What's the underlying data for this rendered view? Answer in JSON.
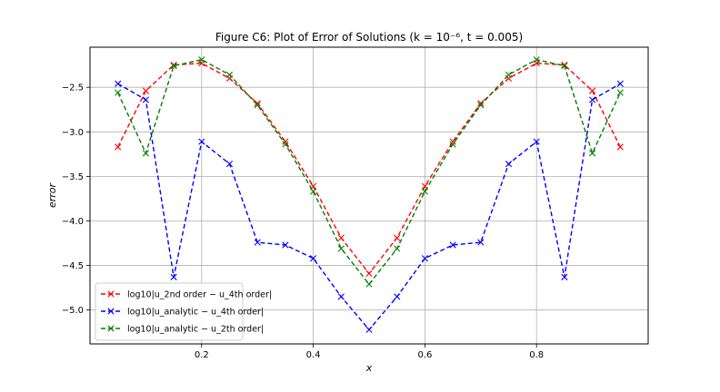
{
  "chart_data": {
    "type": "line",
    "title": "Figure C6: Plot of Error of Solutions (k = 10⁻⁶, t = 0.005)",
    "xlabel": "x",
    "ylabel": "error",
    "xlim": [
      0.0,
      1.0
    ],
    "ylim": [
      -5.38,
      -2.05
    ],
    "xticks": [
      0.2,
      0.4,
      0.6,
      0.8
    ],
    "xtick_labels": [
      "0.2",
      "0.4",
      "0.6",
      "0.8"
    ],
    "yticks": [
      -2.5,
      -3.0,
      -3.5,
      -4.0,
      -4.5,
      -5.0
    ],
    "ytick_labels": [
      "−2.5",
      "−3.0",
      "−3.5",
      "−4.0",
      "−4.5",
      "−5.0"
    ],
    "grid": true,
    "legend_position": "lower-left",
    "x": [
      0.05,
      0.1,
      0.15,
      0.2,
      0.25,
      0.3,
      0.35,
      0.4,
      0.45,
      0.5,
      0.55,
      0.6,
      0.65,
      0.7,
      0.75,
      0.8,
      0.85,
      0.9,
      0.95
    ],
    "series": [
      {
        "name": "log10|u_2nd order − u_4th order|",
        "color": "#ff0000",
        "values": [
          -3.17,
          -2.54,
          -2.25,
          -2.23,
          -2.4,
          -2.68,
          -3.11,
          -3.61,
          -4.19,
          -4.59,
          -4.19,
          -3.61,
          -3.11,
          -2.68,
          -2.4,
          -2.23,
          -2.25,
          -2.54,
          -3.17
        ]
      },
      {
        "name": "log10|u_analytic − u_4th order|",
        "color": "#0000ff",
        "values": [
          -2.46,
          -2.64,
          -4.63,
          -3.11,
          -3.36,
          -4.24,
          -4.27,
          -4.42,
          -4.85,
          -5.22,
          -4.85,
          -4.42,
          -4.27,
          -4.24,
          -3.36,
          -3.11,
          -4.63,
          -2.64,
          -2.46
        ]
      },
      {
        "name": "log10|u_analytic − u_2th order|",
        "color": "#008000",
        "values": [
          -2.56,
          -3.24,
          -2.26,
          -2.19,
          -2.36,
          -2.7,
          -3.14,
          -3.67,
          -4.31,
          -4.71,
          -4.31,
          -3.67,
          -3.14,
          -2.7,
          -2.36,
          -2.19,
          -2.26,
          -3.24,
          -2.56
        ]
      }
    ]
  }
}
